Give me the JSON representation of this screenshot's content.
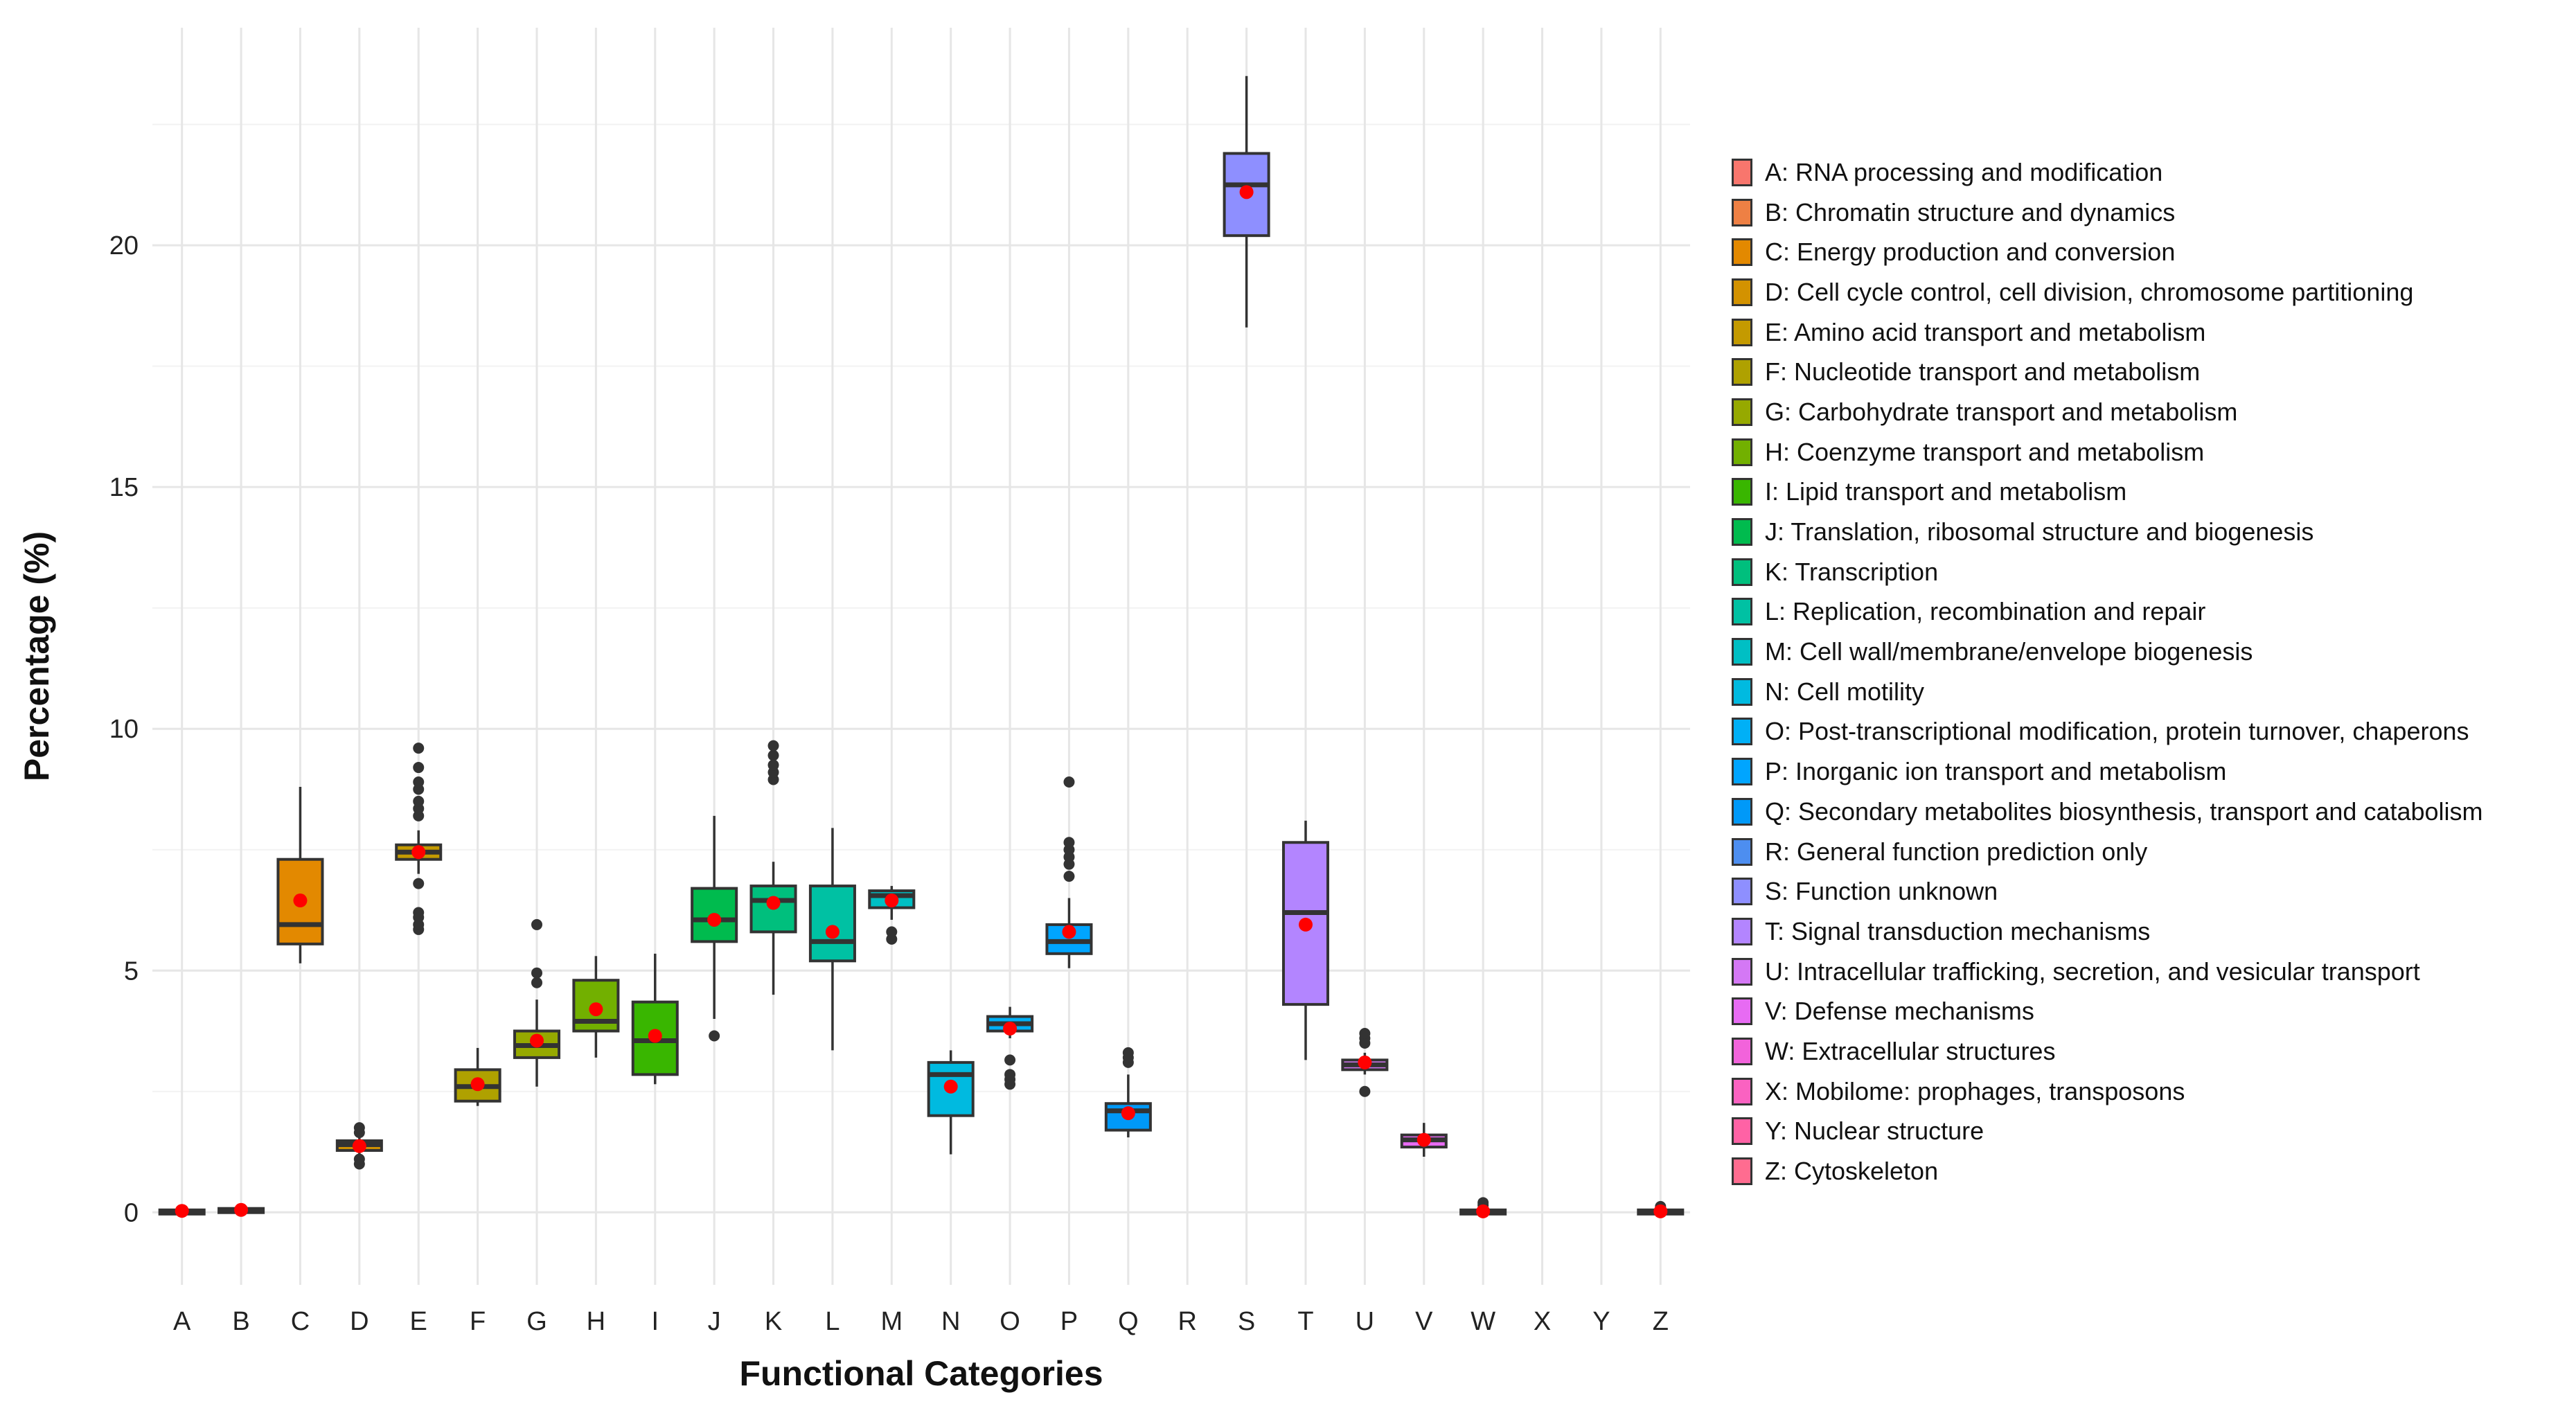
{
  "chart_data": {
    "type": "boxplot",
    "xlabel": "Functional Categories",
    "ylabel": "Percentage (%)",
    "ylim": [
      -1.5,
      24.5
    ],
    "yticks": [
      0,
      5,
      10,
      15,
      20
    ],
    "mean_marker_color": "#ff0000",
    "categories": [
      {
        "code": "A",
        "name": "A: RNA processing and modification",
        "color": "#F8766D",
        "q1": 0,
        "median": 0.02,
        "q3": 0.05,
        "lo": 0,
        "hi": 0.06,
        "mean": 0.03,
        "outliers": []
      },
      {
        "code": "B",
        "name": "B: Chromatin structure and dynamics",
        "color": "#EE8044",
        "q1": 0.02,
        "median": 0.05,
        "q3": 0.08,
        "lo": 0,
        "hi": 0.1,
        "mean": 0.05,
        "outliers": []
      },
      {
        "code": "C",
        "name": "C: Energy production and conversion",
        "color": "#E38900",
        "q1": 5.55,
        "median": 5.95,
        "q3": 7.3,
        "lo": 5.15,
        "hi": 8.8,
        "mean": 6.45,
        "outliers": []
      },
      {
        "code": "D",
        "name": "D: Cell cycle control, cell division, chromosome partitioning",
        "color": "#D39200",
        "q1": 1.28,
        "median": 1.4,
        "q3": 1.48,
        "lo": 1.15,
        "hi": 1.55,
        "mean": 1.37,
        "outliers": [
          1.0,
          1.1,
          1.65,
          1.75
        ]
      },
      {
        "code": "E",
        "name": "E: Amino acid transport and metabolism",
        "color": "#C49A00",
        "q1": 7.3,
        "median": 7.45,
        "q3": 7.6,
        "lo": 7.0,
        "hi": 7.9,
        "mean": 7.45,
        "outliers": [
          5.85,
          5.95,
          6.1,
          6.2,
          6.8,
          8.2,
          8.35,
          8.5,
          8.75,
          8.9,
          9.2,
          9.6
        ]
      },
      {
        "code": "F",
        "name": "F: Nucleotide transport and metabolism",
        "color": "#AFA100",
        "q1": 2.3,
        "median": 2.6,
        "q3": 2.95,
        "lo": 2.2,
        "hi": 3.4,
        "mean": 2.65,
        "outliers": []
      },
      {
        "code": "G",
        "name": "G: Carbohydrate transport and metabolism",
        "color": "#96A900",
        "q1": 3.2,
        "median": 3.45,
        "q3": 3.75,
        "lo": 2.6,
        "hi": 4.4,
        "mean": 3.55,
        "outliers": [
          4.75,
          4.95,
          5.95
        ]
      },
      {
        "code": "H",
        "name": "H: Coenzyme transport and metabolism",
        "color": "#72B000",
        "q1": 3.75,
        "median": 3.95,
        "q3": 4.8,
        "lo": 3.2,
        "hi": 5.3,
        "mean": 4.2,
        "outliers": []
      },
      {
        "code": "I",
        "name": "I: Lipid transport and metabolism",
        "color": "#39B600",
        "q1": 2.85,
        "median": 3.55,
        "q3": 4.35,
        "lo": 2.65,
        "hi": 5.35,
        "mean": 3.65,
        "outliers": []
      },
      {
        "code": "J",
        "name": "J: Translation, ribosomal structure and biogenesis",
        "color": "#00BB4E",
        "q1": 5.6,
        "median": 6.05,
        "q3": 6.7,
        "lo": 4.0,
        "hi": 8.2,
        "mean": 6.05,
        "outliers": [
          3.65
        ]
      },
      {
        "code": "K",
        "name": "K: Transcription",
        "color": "#00BF7D",
        "q1": 5.8,
        "median": 6.45,
        "q3": 6.75,
        "lo": 4.5,
        "hi": 7.25,
        "mean": 6.4,
        "outliers": [
          8.95,
          9.1,
          9.25,
          9.45,
          9.65
        ]
      },
      {
        "code": "L",
        "name": "L: Replication, recombination and repair",
        "color": "#00C1A3",
        "q1": 5.2,
        "median": 5.6,
        "q3": 6.75,
        "lo": 3.35,
        "hi": 7.95,
        "mean": 5.8,
        "outliers": []
      },
      {
        "code": "M",
        "name": "M: Cell wall/membrane/envelope biogenesis",
        "color": "#00BFC4",
        "q1": 6.3,
        "median": 6.55,
        "q3": 6.65,
        "lo": 6.05,
        "hi": 6.75,
        "mean": 6.45,
        "outliers": [
          5.65,
          5.8
        ]
      },
      {
        "code": "N",
        "name": "N: Cell motility",
        "color": "#00BAE0",
        "q1": 2.0,
        "median": 2.85,
        "q3": 3.1,
        "lo": 1.2,
        "hi": 3.35,
        "mean": 2.6,
        "outliers": []
      },
      {
        "code": "O",
        "name": "O: Post-transcriptional modification, protein  turnover, chaperons",
        "color": "#00B0F6",
        "q1": 3.75,
        "median": 3.9,
        "q3": 4.05,
        "lo": 3.6,
        "hi": 4.25,
        "mean": 3.8,
        "outliers": [
          2.65,
          2.75,
          2.85,
          3.15
        ]
      },
      {
        "code": "P",
        "name": "P: Inorganic ion transport and metabolism",
        "color": "#00A5FF",
        "q1": 5.35,
        "median": 5.6,
        "q3": 5.95,
        "lo": 5.05,
        "hi": 6.5,
        "mean": 5.8,
        "outliers": [
          6.95,
          7.2,
          7.35,
          7.5,
          7.65,
          8.9
        ]
      },
      {
        "code": "Q",
        "name": "Q: Secondary metabolites biosynthesis, transport and catabolism",
        "color": "#0099F8",
        "q1": 1.7,
        "median": 2.1,
        "q3": 2.25,
        "lo": 1.55,
        "hi": 2.85,
        "mean": 2.05,
        "outliers": [
          3.1,
          3.2,
          3.3
        ]
      },
      {
        "code": "R",
        "name": "R: General function prediction only",
        "color": "#4D8EF0",
        "q1": null,
        "median": null,
        "q3": null,
        "lo": null,
        "hi": null,
        "mean": null,
        "outliers": []
      },
      {
        "code": "S",
        "name": "S: Function unknown",
        "color": "#8E8FFF",
        "q1": 20.2,
        "median": 21.25,
        "q3": 21.9,
        "lo": 18.3,
        "hi": 23.5,
        "mean": 21.1,
        "outliers": []
      },
      {
        "code": "T",
        "name": "T: Signal transduction mechanisms",
        "color": "#B385FF",
        "q1": 4.3,
        "median": 6.2,
        "q3": 7.65,
        "lo": 3.15,
        "hi": 8.1,
        "mean": 5.95,
        "outliers": []
      },
      {
        "code": "U",
        "name": "U: Intracellular trafficking, secretion, and vesicular transport",
        "color": "#D478F5",
        "q1": 2.95,
        "median": 3.05,
        "q3": 3.15,
        "lo": 2.85,
        "hi": 3.3,
        "mean": 3.1,
        "outliers": [
          2.5,
          3.5,
          3.6,
          3.7
        ]
      },
      {
        "code": "V",
        "name": "V: Defense mechanisms",
        "color": "#E76BF3",
        "q1": 1.35,
        "median": 1.5,
        "q3": 1.6,
        "lo": 1.15,
        "hi": 1.85,
        "mean": 1.5,
        "outliers": []
      },
      {
        "code": "W",
        "name": "W: Extracellular structures",
        "color": "#F263DB",
        "q1": 0,
        "median": 0.02,
        "q3": 0.05,
        "lo": 0,
        "hi": 0.08,
        "mean": 0.02,
        "outliers": [
          0.15,
          0.2
        ]
      },
      {
        "code": "X",
        "name": "X: Mobilome: prophages, transposons",
        "color": "#FA62C1",
        "q1": null,
        "median": null,
        "q3": null,
        "lo": null,
        "hi": null,
        "mean": null,
        "outliers": []
      },
      {
        "code": "Y",
        "name": "Y: Nuclear structure",
        "color": "#FF62A5",
        "q1": null,
        "median": null,
        "q3": null,
        "lo": null,
        "hi": null,
        "mean": null,
        "outliers": []
      },
      {
        "code": "Z",
        "name": "Z: Cytoskeleton",
        "color": "#FF6C90",
        "q1": 0,
        "median": 0.02,
        "q3": 0.05,
        "lo": 0,
        "hi": 0.08,
        "mean": 0.02,
        "outliers": [
          0.12
        ]
      }
    ]
  }
}
